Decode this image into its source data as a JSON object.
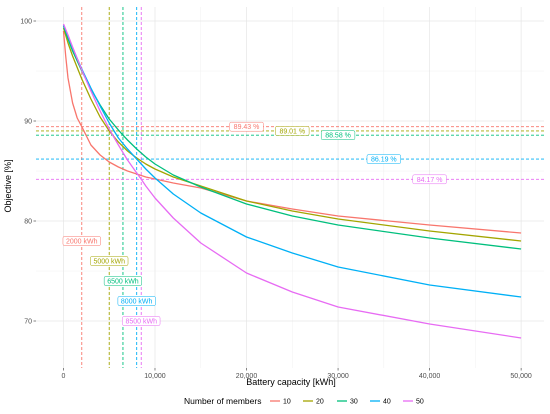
{
  "chart_data": {
    "type": "line",
    "title": "",
    "xlabel": "Battery capacity [kWh]",
    "ylabel": "Objective [%]",
    "xlim": [
      -3000,
      52500
    ],
    "ylim": [
      65.3,
      101.4
    ],
    "x_ticks": [
      0,
      10000,
      20000,
      30000,
      40000,
      50000
    ],
    "x_tick_labels": [
      "0",
      "10,000",
      "20,000",
      "30,000",
      "40,000",
      "50,000"
    ],
    "y_ticks": [
      70,
      80,
      90,
      100
    ],
    "y_tick_labels": [
      "70",
      "80",
      "90",
      "100"
    ],
    "grid": true,
    "legend": {
      "title": "Number of members",
      "position": "bottom"
    },
    "series": [
      {
        "name": "10",
        "color": "#F8766D",
        "x": [
          0,
          250,
          500,
          1000,
          1500,
          2000,
          3000,
          4000,
          5000,
          6000,
          7000,
          8000,
          9000,
          10000,
          12000,
          15000,
          20000,
          25000,
          30000,
          40000,
          50000
        ],
        "y": [
          99.0,
          96.5,
          94.3,
          91.8,
          90.3,
          89.43,
          87.6,
          86.6,
          85.9,
          85.4,
          85.0,
          84.7,
          84.4,
          84.2,
          83.8,
          83.3,
          82.0,
          81.2,
          80.5,
          79.6,
          78.8
        ]
      },
      {
        "name": "20",
        "color": "#A3A500",
        "x": [
          0,
          500,
          1000,
          2000,
          3000,
          4000,
          5000,
          6000,
          7000,
          8000,
          9000,
          10000,
          12000,
          15000,
          20000,
          25000,
          30000,
          40000,
          50000
        ],
        "y": [
          99.3,
          97.8,
          96.5,
          94.2,
          92.2,
          90.4,
          89.01,
          87.9,
          87.0,
          86.3,
          85.7,
          85.2,
          84.4,
          83.5,
          82.0,
          81.0,
          80.2,
          79.0,
          78.0
        ]
      },
      {
        "name": "30",
        "color": "#00BF7D",
        "x": [
          0,
          500,
          1000,
          2000,
          3000,
          4000,
          5000,
          6000,
          6500,
          7000,
          8000,
          9000,
          10000,
          12000,
          15000,
          20000,
          25000,
          30000,
          40000,
          50000
        ],
        "y": [
          99.5,
          98.2,
          97.0,
          95.0,
          93.2,
          91.6,
          90.2,
          89.1,
          88.58,
          88.1,
          87.2,
          86.4,
          85.7,
          84.6,
          83.4,
          81.7,
          80.5,
          79.6,
          78.3,
          77.2
        ]
      },
      {
        "name": "40",
        "color": "#00B0F6",
        "x": [
          0,
          500,
          1000,
          2000,
          3000,
          4000,
          5000,
          6000,
          7000,
          8000,
          9000,
          10000,
          12000,
          15000,
          20000,
          25000,
          30000,
          40000,
          50000
        ],
        "y": [
          99.6,
          98.5,
          97.3,
          95.2,
          93.3,
          91.5,
          89.8,
          88.3,
          87.2,
          86.19,
          85.2,
          84.3,
          82.7,
          80.8,
          78.4,
          76.8,
          75.4,
          73.6,
          72.4
        ]
      },
      {
        "name": "50",
        "color": "#E76BF3",
        "x": [
          0,
          500,
          1000,
          2000,
          3000,
          4000,
          5000,
          6000,
          7000,
          8000,
          8500,
          9000,
          10000,
          12000,
          15000,
          20000,
          25000,
          30000,
          40000,
          50000
        ],
        "y": [
          99.7,
          98.6,
          97.4,
          95.1,
          93.0,
          91.0,
          89.2,
          87.6,
          86.1,
          84.8,
          84.17,
          83.5,
          82.3,
          80.3,
          77.8,
          74.8,
          72.9,
          71.4,
          69.7,
          68.3
        ]
      }
    ],
    "vertical_lines": [
      {
        "series": "10",
        "x": 2000,
        "label": "2000 kWh",
        "label_y": 78.0
      },
      {
        "series": "20",
        "x": 5000,
        "label": "5000 kWh",
        "label_y": 76.0
      },
      {
        "series": "30",
        "x": 6500,
        "label": "6500 kWh",
        "label_y": 74.0
      },
      {
        "series": "40",
        "x": 8000,
        "label": "8000 kWh",
        "label_y": 72.0
      },
      {
        "series": "50",
        "x": 8500,
        "label": "8500 kWh",
        "label_y": 70.0
      }
    ],
    "horizontal_lines": [
      {
        "series": "10",
        "y": 89.43,
        "label": "89.43 %",
        "label_x": 20000
      },
      {
        "series": "20",
        "y": 89.01,
        "label": "89.01 %",
        "label_x": 25000
      },
      {
        "series": "30",
        "y": 88.58,
        "label": "88.58 %",
        "label_x": 30000
      },
      {
        "series": "40",
        "y": 86.19,
        "label": "86.19 %",
        "label_x": 35000
      },
      {
        "series": "50",
        "y": 84.17,
        "label": "84.17 %",
        "label_x": 40000
      }
    ]
  }
}
